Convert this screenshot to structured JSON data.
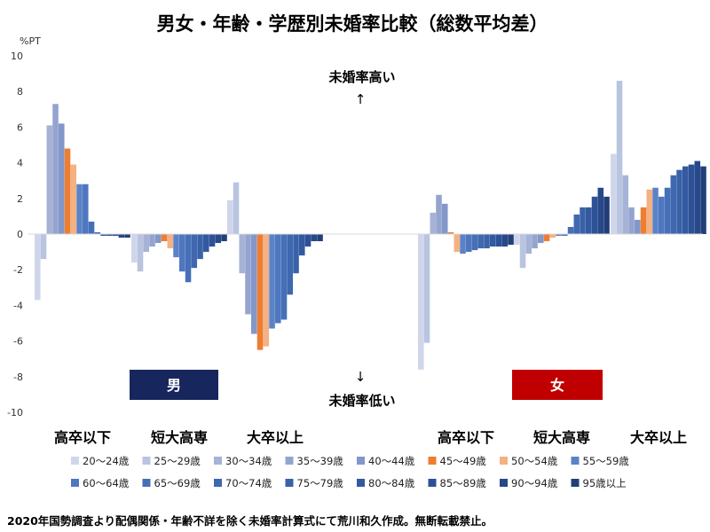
{
  "chart_data": {
    "type": "bar",
    "title": "男女・年齢・学歴別未婚率比較（総数平均差）",
    "y_unit": "%PT",
    "ylim": [
      -10,
      10
    ],
    "yticks": [
      10,
      8,
      6,
      4,
      2,
      0,
      -2,
      -4,
      -6,
      -8,
      -10
    ],
    "grid": false,
    "legend_position": "bottom",
    "annotation_high": "未婚率高い",
    "annotation_low": "未婚率低い",
    "arrow_up": "↑",
    "arrow_down": "↓",
    "gender_labels": {
      "male": "男",
      "female": "女"
    },
    "categories": [
      "高卒以下",
      "短大高専",
      "大卒以上",
      "高卒以下",
      "短大高専",
      "大卒以上"
    ],
    "series_names": [
      "20～24歳",
      "25～29歳",
      "30～34歳",
      "35～39歳",
      "40～44歳",
      "45～49歳",
      "50～54歳",
      "55～59歳",
      "60～64歳",
      "65～69歳",
      "70～74歳",
      "75～79歳",
      "80～84歳",
      "85～89歳",
      "90～94歳",
      "95歳以上"
    ],
    "series_colors": [
      "#d0d6ea",
      "#b9c4e1",
      "#a6b3d7",
      "#94a4cf",
      "#8397c9",
      "#ed7d31",
      "#f4b183",
      "#5b82c6",
      "#4e77c0",
      "#4570b8",
      "#3f68b0",
      "#3962a8",
      "#335aa0",
      "#2d5196",
      "#274889",
      "#223f79"
    ],
    "groups": [
      {
        "values": [
          -3.7,
          -1.4,
          6.1,
          7.3,
          6.2,
          4.8,
          3.9,
          2.8,
          2.8,
          0.7,
          0.1,
          -0.1,
          -0.1,
          -0.1,
          -0.2,
          -0.2
        ]
      },
      {
        "values": [
          -1.6,
          -2.1,
          -1.0,
          -0.7,
          -0.5,
          -0.4,
          -0.8,
          -1.3,
          -2.1,
          -2.7,
          -1.9,
          -1.4,
          -1.0,
          -0.7,
          -0.5,
          -0.4
        ]
      },
      {
        "values": [
          1.9,
          2.9,
          -2.2,
          -4.5,
          -5.6,
          -6.5,
          -6.3,
          -5.3,
          -5.0,
          -4.8,
          -3.4,
          -2.2,
          -1.2,
          -0.7,
          -0.4,
          -0.4
        ]
      },
      {
        "values": [
          -7.6,
          -6.1,
          1.2,
          2.2,
          1.7,
          0.1,
          -1.0,
          -1.1,
          -1.0,
          -0.9,
          -0.8,
          -0.8,
          -0.7,
          -0.7,
          -0.7,
          -0.6
        ]
      },
      {
        "values": [
          -0.6,
          -1.9,
          -1.1,
          -0.8,
          -0.5,
          -0.4,
          -0.2,
          -0.1,
          -0.1,
          0.4,
          1.1,
          1.5,
          1.5,
          2.1,
          2.6,
          2.1
        ]
      },
      {
        "values": [
          4.5,
          8.6,
          3.3,
          1.5,
          0.8,
          1.5,
          2.5,
          2.6,
          2.1,
          2.6,
          3.3,
          3.6,
          3.8,
          3.9,
          4.1,
          3.8
        ]
      }
    ]
  },
  "footer": "2020年国勢調査より配偶関係・年齢不詳を除く未婚率計算式にて荒川和久作成。無断転載禁止。"
}
